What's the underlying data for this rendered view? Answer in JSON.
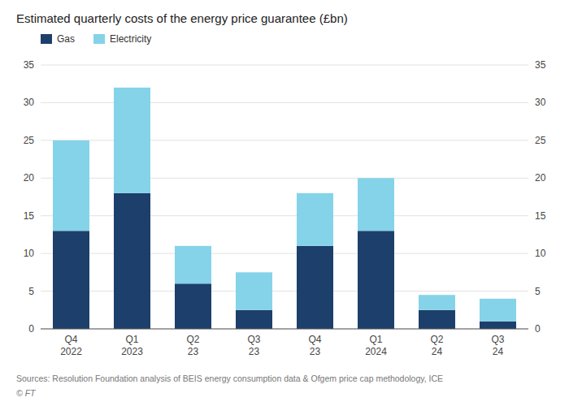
{
  "chart_data": {
    "type": "bar",
    "stacked": true,
    "title": "Estimated quarterly costs of the energy price guarantee (£bn)",
    "categories": [
      "Q4\n2022",
      "Q1\n2023",
      "Q2\n23",
      "Q3\n23",
      "Q4\n23",
      "Q1\n2024",
      "Q2\n24",
      "Q3\n24"
    ],
    "series": [
      {
        "name": "Gas",
        "color": "#1d3f6b",
        "values": [
          13.0,
          18.0,
          6.0,
          2.5,
          11.0,
          13.0,
          2.5,
          1.0
        ]
      },
      {
        "name": "Electricity",
        "color": "#85d3e8",
        "values": [
          12.0,
          14.0,
          5.0,
          5.0,
          7.0,
          7.0,
          2.0,
          3.0
        ]
      }
    ],
    "ylim": [
      0,
      35
    ],
    "yticks": [
      0,
      5,
      10,
      15,
      20,
      25,
      30,
      35
    ],
    "y2lim": [
      0,
      35
    ],
    "y2ticks": [
      0,
      5,
      10,
      15,
      20,
      25,
      30,
      35
    ],
    "grid": true,
    "legend": "upper left",
    "source": "Sources: Resolution Foundation analysis of BEIS energy consumption data & Ofgem price cap methodology, ICE",
    "footer": "© FT"
  }
}
